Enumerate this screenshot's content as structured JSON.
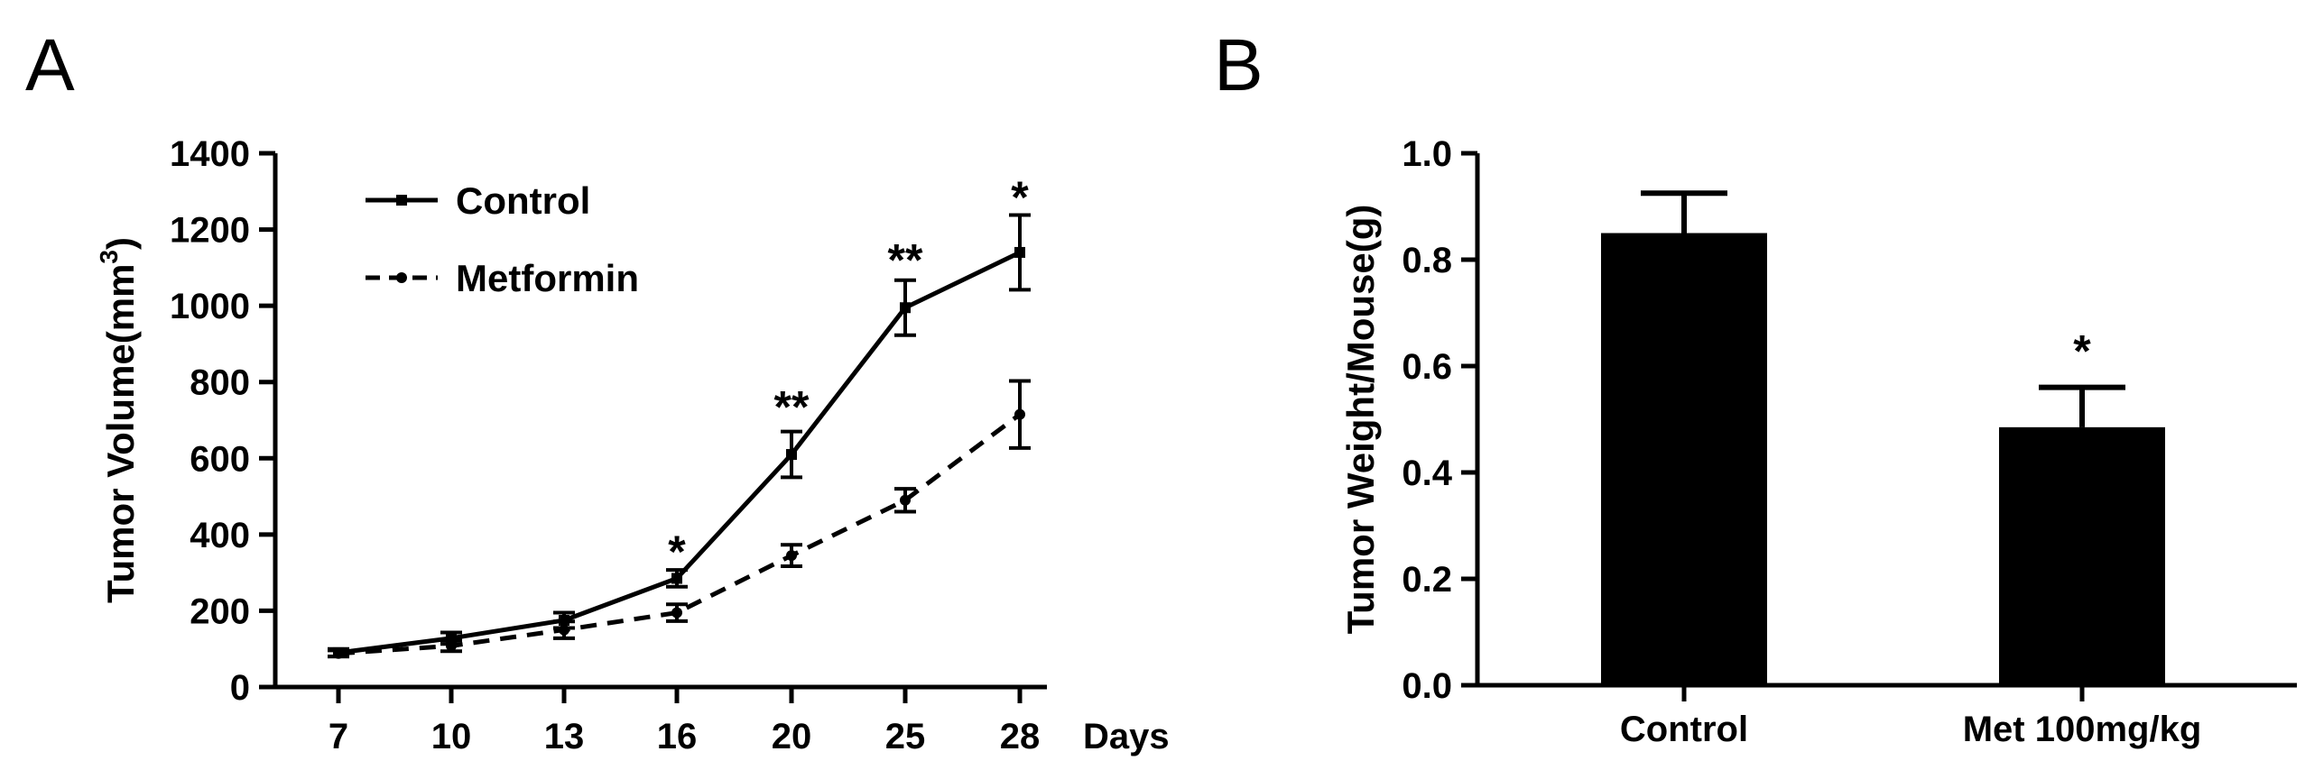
{
  "panels": [
    {
      "label": "A"
    },
    {
      "label": "B"
    }
  ],
  "chart_data": [
    {
      "type": "line",
      "xlabel": "Days",
      "ylabel": "Tumor Volume(mm",
      "ylabel_sup": "3",
      "ylabel_close": ")",
      "ylim": [
        0,
        1400
      ],
      "yticks": [
        "0",
        "200",
        "400",
        "600",
        "800",
        "1000",
        "1200",
        "1400"
      ],
      "categories": [
        "7",
        "10",
        "13",
        "16",
        "20",
        "25",
        "28"
      ],
      "x": [
        7,
        10,
        13,
        16,
        20,
        25,
        28
      ],
      "legend_position": "top-left",
      "series": [
        {
          "name": "Control",
          "style": "solid",
          "values": [
            90,
            128,
            175,
            285,
            610,
            995,
            1140
          ],
          "errors": [
            10,
            15,
            20,
            22,
            60,
            72,
            98
          ]
        },
        {
          "name": "Metformin",
          "style": "dashed",
          "values": [
            88,
            108,
            150,
            195,
            345,
            490,
            715
          ],
          "errors": [
            8,
            14,
            22,
            22,
            28,
            30,
            88
          ]
        }
      ],
      "annotations": [
        {
          "x": "16",
          "text": "*",
          "y": 385
        },
        {
          "x": "20",
          "text": "**",
          "y": 765
        },
        {
          "x": "25",
          "text": "**",
          "y": 1150
        },
        {
          "x": "28",
          "text": "*",
          "y": 1315
        }
      ],
      "grid": false
    },
    {
      "type": "bar",
      "xlabel": "",
      "ylabel": "Tumor Weight/Mouse(g)",
      "ylim": [
        0,
        1.0
      ],
      "yticks": [
        "0.0",
        "0.2",
        "0.4",
        "0.6",
        "0.8",
        "1.0"
      ],
      "categories": [
        "Control",
        "Met 100mg/kg"
      ],
      "values": [
        0.85,
        0.485
      ],
      "errors": [
        0.075,
        0.075
      ],
      "annotations": [
        {
          "category": "Met 100mg/kg",
          "text": "*",
          "y": 0.65
        }
      ],
      "color": "#000000",
      "grid": false
    }
  ]
}
